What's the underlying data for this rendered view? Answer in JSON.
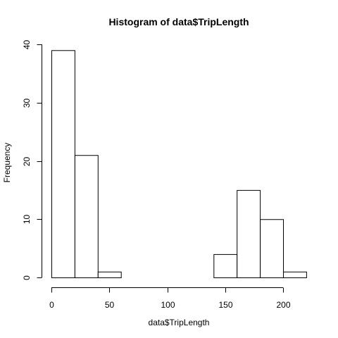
{
  "chart_data": {
    "type": "bar",
    "title": "Histogram of data$TripLength",
    "xlabel": "data$TripLength",
    "ylabel": "Frequency",
    "bins": [
      {
        "start": 0,
        "end": 20,
        "count": 39
      },
      {
        "start": 20,
        "end": 40,
        "count": 21
      },
      {
        "start": 40,
        "end": 60,
        "count": 1
      },
      {
        "start": 60,
        "end": 80,
        "count": 0
      },
      {
        "start": 80,
        "end": 100,
        "count": 0
      },
      {
        "start": 100,
        "end": 120,
        "count": 0
      },
      {
        "start": 120,
        "end": 140,
        "count": 0
      },
      {
        "start": 140,
        "end": 160,
        "count": 4
      },
      {
        "start": 160,
        "end": 180,
        "count": 15
      },
      {
        "start": 180,
        "end": 200,
        "count": 10
      },
      {
        "start": 200,
        "end": 220,
        "count": 1
      }
    ],
    "x_ticks": [
      0,
      50,
      100,
      150,
      200
    ],
    "y_ticks": [
      0,
      10,
      20,
      30,
      40
    ],
    "xlim": [
      0,
      220
    ],
    "ylim": [
      0,
      40
    ],
    "grid": false,
    "legend": "none"
  }
}
